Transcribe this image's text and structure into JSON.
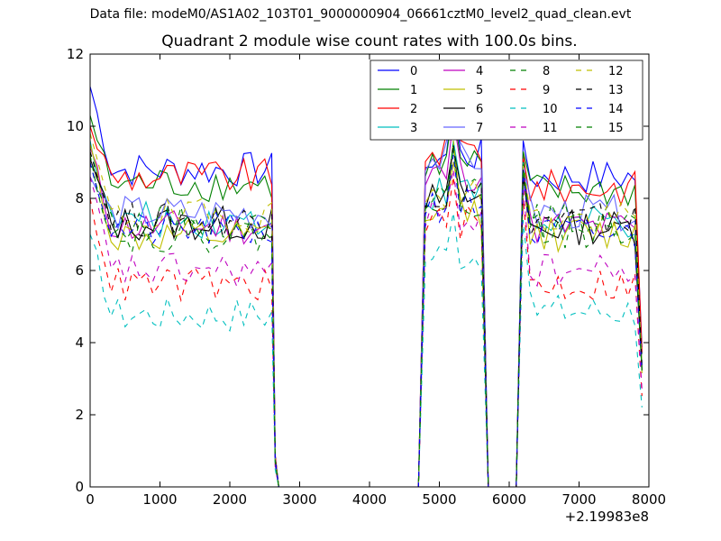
{
  "figure_title": "Data file: modeM0/AS1A02_103T01_9000000904_06661cztM0_level2_quad_clean.evt",
  "chart_data": {
    "type": "line",
    "title": "Quadrant 2 module wise count rates with 100.0s bins.",
    "xlabel": "",
    "ylabel": "",
    "x_offset_label": "+2.19983e8",
    "xlim": [
      0,
      8000
    ],
    "ylim": [
      0,
      12
    ],
    "x_ticks": [
      0,
      1000,
      2000,
      3000,
      4000,
      5000,
      6000,
      7000,
      8000
    ],
    "y_ticks": [
      0,
      2,
      4,
      6,
      8,
      10,
      12
    ],
    "legend_position": "upper-right",
    "legend_columns": 4,
    "segments": [
      {
        "x_start": 0,
        "x_end": 2600,
        "x_step": 100
      },
      {
        "x_start": 4800,
        "x_end": 5600,
        "x_step": 100
      },
      {
        "x_start": 6200,
        "x_end": 7900,
        "x_step": 100
      }
    ],
    "zero_intervals": [
      [
        2700,
        4700
      ],
      [
        5700,
        6100
      ]
    ],
    "series": [
      {
        "name": "0",
        "color": "#0000ff",
        "dashed": false,
        "start_peak": 11.1,
        "level": 8.8,
        "mid_peak": 10.8,
        "late_peak": 9.6,
        "late_level": 8.6
      },
      {
        "name": "1",
        "color": "#008000",
        "dashed": false,
        "start_peak": 10.3,
        "level": 8.4,
        "mid_peak": 10.5,
        "late_peak": 9.3,
        "late_level": 8.2
      },
      {
        "name": "2",
        "color": "#ff0000",
        "dashed": false,
        "start_peak": 10.0,
        "level": 8.6,
        "mid_peak": 11.0,
        "late_peak": 9.2,
        "late_level": 8.3
      },
      {
        "name": "3",
        "color": "#00bfbf",
        "dashed": false,
        "start_peak": 9.6,
        "level": 7.4,
        "mid_peak": 9.6,
        "late_peak": 9.0,
        "late_level": 7.3
      },
      {
        "name": "4",
        "color": "#bf00bf",
        "dashed": false,
        "start_peak": 9.4,
        "level": 7.2,
        "mid_peak": 10.2,
        "late_peak": 8.8,
        "late_level": 7.2
      },
      {
        "name": "5",
        "color": "#bfbf00",
        "dashed": false,
        "start_peak": 9.5,
        "level": 6.9,
        "mid_peak": 9.0,
        "late_peak": 8.7,
        "late_level": 7.0
      },
      {
        "name": "6",
        "color": "#000000",
        "dashed": false,
        "start_peak": 9.1,
        "level": 7.3,
        "mid_peak": 9.4,
        "late_peak": 8.6,
        "late_level": 7.2
      },
      {
        "name": "7",
        "color": "#6666ff",
        "dashed": false,
        "start_peak": 8.6,
        "level": 7.6,
        "mid_peak": 10.7,
        "late_peak": 8.9,
        "late_level": 7.6
      },
      {
        "name": "8",
        "color": "#008000",
        "dashed": true,
        "start_peak": 9.0,
        "level": 7.3,
        "mid_peak": 9.5,
        "late_peak": 9.2,
        "late_level": 7.4
      },
      {
        "name": "9",
        "color": "#ff0000",
        "dashed": true,
        "start_peak": 8.0,
        "level": 5.6,
        "mid_peak": 8.6,
        "late_peak": 8.0,
        "late_level": 5.6
      },
      {
        "name": "10",
        "color": "#00bfbf",
        "dashed": true,
        "start_peak": 7.0,
        "level": 4.8,
        "mid_peak": 7.6,
        "late_peak": 7.4,
        "late_level": 4.9
      },
      {
        "name": "11",
        "color": "#bf00bf",
        "dashed": true,
        "start_peak": 8.6,
        "level": 6.0,
        "mid_peak": 8.8,
        "late_peak": 8.4,
        "late_level": 6.0
      },
      {
        "name": "12",
        "color": "#bfbf00",
        "dashed": true,
        "start_peak": 9.8,
        "level": 7.5,
        "mid_peak": 9.6,
        "late_peak": 8.9,
        "late_level": 7.4
      },
      {
        "name": "13",
        "color": "#000000",
        "dashed": true,
        "start_peak": 9.3,
        "level": 7.4,
        "mid_peak": 9.5,
        "late_peak": 8.8,
        "late_level": 7.4
      },
      {
        "name": "14",
        "color": "#0000ff",
        "dashed": true,
        "start_peak": 9.0,
        "level": 7.1,
        "mid_peak": 9.2,
        "late_peak": 8.7,
        "late_level": 7.0
      },
      {
        "name": "15",
        "color": "#008000",
        "dashed": true,
        "start_peak": 9.2,
        "level": 7.0,
        "mid_peak": 9.4,
        "late_peak": 8.8,
        "late_level": 7.1
      }
    ]
  }
}
